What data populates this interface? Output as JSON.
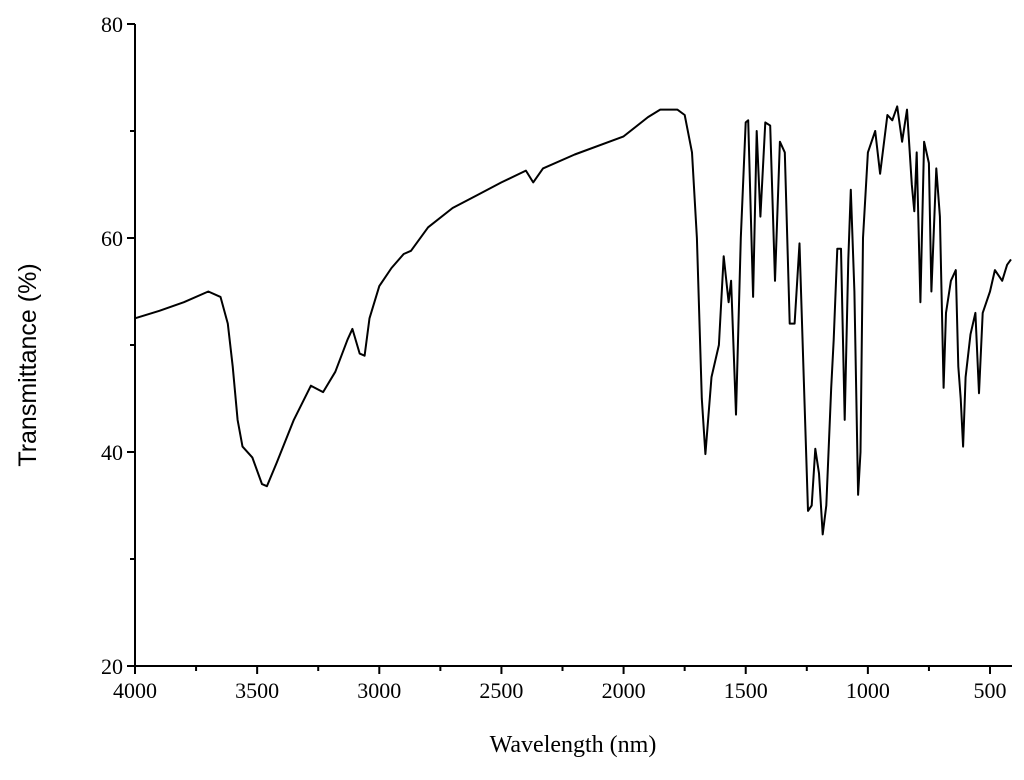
{
  "chart_data": {
    "type": "line",
    "x_label": "Wavelength (nm)",
    "y_label": "Transmittance (%)",
    "xlim": [
      4000,
      410
    ],
    "ylim": [
      20,
      80
    ],
    "xticks": [
      4000,
      3500,
      3000,
      2500,
      2000,
      1500,
      1000,
      500
    ],
    "xminor_ticks": [
      3750,
      3250,
      2750,
      2250,
      1750,
      1250,
      750
    ],
    "yticks": [
      20,
      40,
      60,
      80
    ],
    "yminor_ticks": [
      30,
      50,
      70
    ],
    "series": [
      {
        "color": "#000000",
        "x": [
          4000,
          3900,
          3800,
          3700,
          3650,
          3620,
          3600,
          3580,
          3560,
          3520,
          3480,
          3460,
          3420,
          3350,
          3280,
          3230,
          3180,
          3130,
          3110,
          3080,
          3060,
          3040,
          3000,
          2950,
          2900,
          2870,
          2800,
          2700,
          2600,
          2500,
          2400,
          2370,
          2330,
          2200,
          2000,
          1900,
          1850,
          1780,
          1750,
          1720,
          1700,
          1680,
          1665,
          1640,
          1610,
          1590,
          1570,
          1560,
          1540,
          1520,
          1500,
          1490,
          1470,
          1455,
          1440,
          1420,
          1400,
          1380,
          1360,
          1340,
          1320,
          1300,
          1280,
          1260,
          1245,
          1230,
          1215,
          1200,
          1185,
          1170,
          1150,
          1140,
          1125,
          1110,
          1095,
          1080,
          1070,
          1055,
          1040,
          1030,
          1020,
          1000,
          970,
          950,
          920,
          900,
          880,
          860,
          840,
          820,
          810,
          800,
          785,
          770,
          750,
          740,
          720,
          705,
          690,
          680,
          660,
          640,
          630,
          620,
          610,
          600,
          580,
          560,
          545,
          530,
          500,
          480,
          450,
          430,
          414
        ],
        "values": [
          52.5,
          53.2,
          54,
          55,
          54.5,
          52,
          48,
          43,
          40.5,
          39.5,
          37,
          36.8,
          39,
          43,
          46.2,
          45.6,
          47.5,
          50.5,
          51.5,
          49.2,
          49,
          52.5,
          55.5,
          57.2,
          58.5,
          58.8,
          61,
          62.8,
          64,
          65.2,
          66.3,
          65.2,
          66.5,
          67.8,
          69.5,
          71.3,
          72,
          72,
          71.5,
          68,
          60,
          45,
          39.8,
          47,
          50,
          58.3,
          54,
          56,
          43.5,
          60,
          70.8,
          71,
          54.5,
          70,
          62,
          70.8,
          70.5,
          56,
          69,
          68,
          52,
          52,
          59.5,
          45,
          34.5,
          35,
          40.3,
          38,
          32.3,
          35,
          46,
          50.5,
          59,
          59,
          43,
          58,
          64.5,
          55,
          36,
          40,
          60,
          68,
          70,
          66,
          71.5,
          71,
          72.3,
          69,
          72,
          65,
          62.5,
          68,
          54,
          69,
          67,
          55,
          66.5,
          62,
          46,
          53,
          56,
          57,
          48,
          45,
          40.5,
          47,
          51,
          53,
          45.5,
          53,
          55,
          57,
          56,
          57.5,
          58
        ]
      }
    ]
  }
}
